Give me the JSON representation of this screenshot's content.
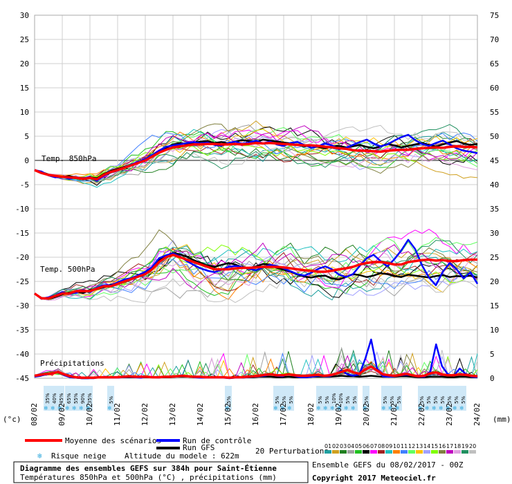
{
  "chart_data": {
    "type": "line",
    "title": "Diagramme des ensembles GEFS sur 384h pour Saint-Étienne",
    "subtitle": "Températures 850hPa et 500hPa (°C) , précipitations (mm)",
    "ylabel_left": "(°c)",
    "ylabel_right": "(mm)",
    "y_left_ticks": [
      30,
      25,
      20,
      15,
      10,
      5,
      0,
      -5,
      -10,
      -15,
      -20,
      -25,
      -30,
      -35,
      -40,
      -45
    ],
    "y_right_ticks": [
      75,
      70,
      65,
      60,
      55,
      50,
      45,
      40,
      35,
      30,
      25,
      20,
      15,
      10,
      5,
      0
    ],
    "ylim_left": [
      -45,
      30
    ],
    "ylim_right": [
      0,
      75
    ],
    "x_ticks": [
      "08/02",
      "09/02",
      "10/02",
      "11/02",
      "12/02",
      "13/02",
      "14/02",
      "15/02",
      "16/02",
      "17/02",
      "18/02",
      "19/02",
      "20/02",
      "21/02",
      "22/02",
      "23/02",
      "24/02"
    ],
    "x_step_hours": 6,
    "grid": true,
    "annotations": {
      "t850": "Temp. 850hPa",
      "t500": "Temp. 500hPa",
      "precip": "Précipitations"
    },
    "series": [
      {
        "name": "Moyenne des scénarios",
        "color": "#ff0000",
        "role": "t850",
        "values": [
          -2,
          -2.6,
          -3,
          -3.2,
          -3.4,
          -3.5,
          -3.6,
          -3.8,
          -3.6,
          -3.9,
          -3,
          -2.4,
          -2,
          -1.5,
          -1,
          -0.5,
          0,
          0.8,
          1.6,
          2.2,
          2.7,
          2.9,
          3.1,
          3.3,
          3.3,
          3.4,
          3.4,
          3.3,
          3.3,
          3.4,
          3.3,
          3.4,
          3.6,
          3.5,
          3.6,
          3.5,
          3.4,
          3.3,
          3.2,
          3.1,
          3.1,
          3.0,
          2.8,
          2.7,
          2.5,
          2.4,
          2.1,
          2.0,
          2.0,
          1.9,
          1.8,
          2.0,
          2.1,
          2.2,
          2.2,
          2.4,
          2.5,
          2.6,
          2.7,
          2.6,
          2.8,
          2.9,
          2.8,
          2.8,
          2.7
        ]
      },
      {
        "name": "Run de contrôle",
        "color": "#0000ff",
        "role": "t850",
        "values": [
          -2,
          -2.3,
          -3.1,
          -3.5,
          -3.3,
          -3.8,
          -3.5,
          -3.7,
          -3.4,
          -4.2,
          -3.2,
          -2.5,
          -2.1,
          -1.4,
          -0.8,
          -0.3,
          0.3,
          1.1,
          2.0,
          2.8,
          3.1,
          3.3,
          3.6,
          3.8,
          3.5,
          3.7,
          3.2,
          3.0,
          3.6,
          3.9,
          3.4,
          3.7,
          4.1,
          3.5,
          3.9,
          3.3,
          3.0,
          3.6,
          3.8,
          3.2,
          2.6,
          2.9,
          3.5,
          3.1,
          2.3,
          2.6,
          3.2,
          3.8,
          4.3,
          3.5,
          2.9,
          3.3,
          4.1,
          4.8,
          5.3,
          4.2,
          3.4,
          3.0,
          3.6,
          4.1,
          3.3,
          2.5,
          2.0,
          1.8,
          1.5
        ]
      },
      {
        "name": "Run GFS",
        "color": "#000000",
        "role": "t850",
        "values": [
          -2,
          -2.4,
          -2.9,
          -3.3,
          -3.5,
          -3.2,
          -3.6,
          -3.9,
          -3.5,
          -3.7,
          -2.8,
          -2.2,
          -1.8,
          -1.3,
          -0.9,
          -0.4,
          0.2,
          1.0,
          1.9,
          2.6,
          3.3,
          3.6,
          3.4,
          3.7,
          3.9,
          4.0,
          3.6,
          3.8,
          3.5,
          3.9,
          4.2,
          4.0,
          3.8,
          4.3,
          4.1,
          3.9,
          3.7,
          3.5,
          3.2,
          2.9,
          3.1,
          2.8,
          2.5,
          2.9,
          3.0,
          2.7,
          2.9,
          3.2,
          2.8,
          2.5,
          2.9,
          3.4,
          3.1,
          2.7,
          3.0,
          3.3,
          3.6,
          3.2,
          2.9,
          3.3,
          3.7,
          4.0,
          3.5,
          3.2,
          3.4
        ]
      },
      {
        "name": "Moyenne des scénarios",
        "color": "#ff0000",
        "role": "t500",
        "values": [
          -27.5,
          -28.5,
          -28.5,
          -28,
          -27.5,
          -27.5,
          -27,
          -27,
          -27,
          -26.5,
          -26,
          -26,
          -25.5,
          -25,
          -24.5,
          -24,
          -23.5,
          -22.5,
          -21,
          -20,
          -19.5,
          -20,
          -20.5,
          -21,
          -21.5,
          -22,
          -22.5,
          -22.5,
          -22.5,
          -22.3,
          -22.2,
          -22.2,
          -22.1,
          -22.0,
          -22.0,
          -22.0,
          -22.1,
          -22.3,
          -22.5,
          -22.7,
          -22.8,
          -23.0,
          -23.0,
          -22.8,
          -22.5,
          -22.3,
          -22.0,
          -21.5,
          -21.2,
          -21.0,
          -21.0,
          -21.2,
          -21.5,
          -21.5,
          -21.0,
          -20.8,
          -20.6,
          -20.5,
          -20.7,
          -20.6,
          -20.8,
          -20.8,
          -20.6,
          -20.5,
          -20.5
        ]
      },
      {
        "name": "Run de contrôle",
        "color": "#0000ff",
        "role": "t500",
        "values": [
          -27.5,
          -28.6,
          -28.3,
          -27.9,
          -27.2,
          -27.6,
          -27.3,
          -26.8,
          -27.2,
          -26.3,
          -25.8,
          -25.8,
          -25.2,
          -24.6,
          -24.3,
          -23.7,
          -23.0,
          -22.0,
          -20.2,
          -19.6,
          -19.2,
          -19.8,
          -20.8,
          -21.6,
          -22.3,
          -22.8,
          -23.1,
          -22.6,
          -22.0,
          -21.8,
          -22.0,
          -22.4,
          -22.7,
          -22.1,
          -21.6,
          -21.8,
          -22.3,
          -22.9,
          -23.5,
          -23.8,
          -23.2,
          -22.4,
          -21.9,
          -22.5,
          -23.6,
          -24.1,
          -23.5,
          -21.8,
          -20.2,
          -19.5,
          -20.8,
          -21.9,
          -20.4,
          -18.6,
          -16.4,
          -18.3,
          -21.7,
          -24.2,
          -25.8,
          -23.0,
          -21.2,
          -22.5,
          -24.4,
          -23.1,
          -25.5
        ]
      },
      {
        "name": "Run GFS",
        "color": "#000000",
        "role": "t500",
        "values": [
          -27.5,
          -28.4,
          -28.6,
          -28.2,
          -27.7,
          -27.3,
          -27.1,
          -27.4,
          -26.8,
          -26.6,
          -26.2,
          -25.7,
          -25.4,
          -25.1,
          -24.6,
          -23.8,
          -23.1,
          -22.1,
          -20.5,
          -19.7,
          -19.1,
          -19.4,
          -19.9,
          -20.6,
          -21.2,
          -21.7,
          -22.0,
          -21.6,
          -21.2,
          -21.5,
          -22.1,
          -22.3,
          -21.9,
          -21.4,
          -21.5,
          -22.2,
          -22.6,
          -23.0,
          -23.6,
          -24.0,
          -24.2,
          -23.9,
          -23.8,
          -24.4,
          -24.6,
          -24.1,
          -23.5,
          -23.7,
          -24.1,
          -23.8,
          -23.3,
          -23.5,
          -23.9,
          -24.1,
          -23.6,
          -23.8,
          -24.0,
          -24.2,
          -23.9,
          -23.7,
          -24.1,
          -23.9,
          -24.0,
          -23.8,
          -24.2
        ]
      },
      {
        "name": "Moyenne des scénarios",
        "color": "#ff0000",
        "role": "precip",
        "values": [
          0.5,
          0.7,
          0.9,
          1.0,
          1.3,
          0.8,
          0.4,
          0.2,
          0.1,
          0.1,
          0.1,
          0.2,
          0.2,
          0.2,
          0.2,
          0.3,
          0.4,
          0.3,
          0.3,
          0.3,
          0.2,
          0.2,
          0.3,
          0.3,
          0.4,
          0.5,
          0.4,
          0.3,
          0.3,
          0.2,
          0.2,
          0.2,
          0.2,
          0.1,
          0.2,
          0.2,
          0.3,
          0.4,
          0.5,
          0.7,
          0.8,
          0.6,
          0.6,
          0.8,
          0.6,
          0.5,
          0.5,
          0.6,
          0.7,
          0.5,
          0.6,
          0.9,
          1.3,
          1.7,
          1.2,
          0.9,
          1.8,
          2.4,
          1.6,
          0.8,
          0.6,
          0.5,
          0.7,
          0.9,
          0.6,
          0.4,
          0.5,
          1.0,
          1.2,
          0.8,
          0.6,
          0.6,
          0.8,
          0.7,
          0.5,
          0.4
        ]
      },
      {
        "name": "Run de contrôle",
        "color": "#0000ff",
        "role": "precip",
        "values": [
          0.3,
          0.5,
          0.8,
          1.0,
          1.4,
          0.6,
          0.2,
          0.1,
          0.0,
          0.0,
          0.0,
          0.2,
          0.3,
          0.1,
          0.1,
          0.2,
          0.3,
          0.2,
          0.1,
          0.3,
          0.2,
          0.1,
          0.3,
          0.4,
          0.3,
          0.6,
          0.4,
          0.2,
          0.1,
          0.1,
          0.1,
          0.1,
          0.1,
          0.0,
          0.1,
          0.1,
          0.2,
          0.3,
          0.4,
          0.5,
          0.8,
          0.5,
          0.4,
          0.9,
          0.5,
          0.2,
          0.2,
          0.3,
          0.5,
          0.4,
          0.4,
          0.9,
          1.6,
          0.8,
          0.5,
          0.8,
          4.0,
          8.0,
          2.0,
          0.4,
          0.3,
          0.4,
          0.6,
          0.7,
          0.6,
          0.3,
          0.3,
          1.3,
          7.0,
          2.5,
          0.8,
          0.5,
          2.0,
          0.9,
          0.3,
          0.2
        ]
      },
      {
        "name": "Run GFS",
        "color": "#000000",
        "role": "precip",
        "values": [
          0.4,
          0.6,
          0.9,
          1.1,
          1.2,
          0.7,
          0.2,
          0.1,
          0.0,
          0.0,
          0.1,
          0.1,
          0.1,
          0.1,
          0.2,
          0.2,
          0.2,
          0.2,
          0.2,
          0.2,
          0.2,
          0.2,
          0.2,
          0.2,
          0.3,
          0.3,
          0.3,
          0.2,
          0.2,
          0.2,
          0.2,
          0.1,
          0.1,
          0.1,
          0.1,
          0.1,
          0.2,
          0.2,
          0.3,
          0.3,
          0.3,
          0.2,
          0.2,
          0.3,
          0.2,
          0.2,
          0.2,
          0.3,
          0.3,
          0.3,
          0.3,
          0.4,
          0.5,
          0.4,
          0.4,
          0.3,
          0.4,
          0.5,
          0.4,
          0.3,
          0.3,
          0.3,
          0.4,
          0.4,
          0.3,
          0.2,
          0.2,
          0.3,
          0.3,
          0.3,
          0.2,
          0.2,
          0.3,
          0.3,
          0.2,
          0.2
        ]
      }
    ],
    "snow_risk": [
      {
        "label": "35%"
      },
      {
        "label": "40%"
      },
      {
        "label": "45%"
      },
      {
        "label": "65%"
      },
      {
        "label": "55%"
      },
      {
        "label": "90%"
      },
      {
        "label": "35%"
      },
      {
        "label": "5%"
      },
      {
        "label": "5%"
      },
      {
        "label": "5%"
      },
      {
        "label": "5%"
      },
      {
        "label": "5%"
      },
      {
        "label": "5%"
      },
      {
        "label": "5%"
      },
      {
        "label": "10%"
      },
      {
        "label": "10%"
      },
      {
        "label": "5%"
      },
      {
        "label": "5%"
      },
      {
        "label": "5%"
      },
      {
        "label": "5%"
      },
      {
        "label": "5%"
      },
      {
        "label": "5%"
      },
      {
        "label": "5%"
      },
      {
        "label": "5%"
      },
      {
        "label": "5%"
      },
      {
        "label": "5%"
      },
      {
        "label": "5%"
      },
      {
        "label": "5%"
      },
      {
        "label": "5%"
      }
    ],
    "perturbations": {
      "label": "20 Perturbations",
      "ids": [
        "01",
        "02",
        "03",
        "04",
        "05",
        "06",
        "07",
        "08",
        "09",
        "10",
        "11",
        "12",
        "13",
        "14",
        "15",
        "16",
        "17",
        "18",
        "19",
        "20"
      ],
      "colors": [
        "#20a0a0",
        "#d0a020",
        "#208020",
        "#a0a0a0",
        "#20c020",
        "#000000",
        "#ff00ff",
        "#a02020",
        "#20c0c0",
        "#ff8000",
        "#4080ff",
        "#60ff60",
        "#ffc000",
        "#a0a0ff",
        "#80ff00",
        "#808040",
        "#c000c0",
        "#e0a0e0",
        "#209060",
        "#c0c0c0"
      ]
    }
  },
  "legend": {
    "mean": "Moyenne des scénarios",
    "control": "Run de contrôle",
    "gfs": "Run GFS",
    "snow": "Risque neige",
    "altitude": "Altitude du modele : 622m"
  },
  "footer": {
    "title": "Diagramme des ensembles GEFS sur 384h pour Saint-Étienne",
    "subtitle": "Températures 850hPa et 500hPa (°C) , précipitations (mm)",
    "run": "Ensemble GEFS du 08/02/2017 - 00Z",
    "copyright": "Copyright 2017 Meteociel.fr"
  }
}
